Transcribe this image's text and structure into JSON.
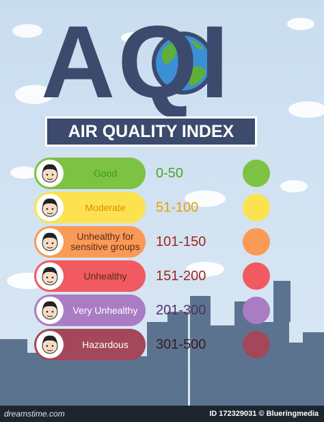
{
  "header": {
    "title": "AQI",
    "subtitle": "AIR QUALITY INDEX"
  },
  "levels": [
    {
      "label": "Good",
      "range": "0-50",
      "color": "#7dc242"
    },
    {
      "label": "Moderate",
      "range": "51-100",
      "color": "#fde24f"
    },
    {
      "label": "Unhealthy for sensitive groups",
      "range": "101-150",
      "color": "#f99a57"
    },
    {
      "label": "Unhealthy",
      "range": "151-200",
      "color": "#f15a60"
    },
    {
      "label": "Very Unhealthy",
      "range": "201-300",
      "color": "#a97cc4"
    },
    {
      "label": "Hazardous",
      "range": "301-500",
      "color": "#a4475a"
    }
  ],
  "footer": {
    "credit": "ID 172329031 © Blueringmedia",
    "brand": "dreamstime.com"
  }
}
